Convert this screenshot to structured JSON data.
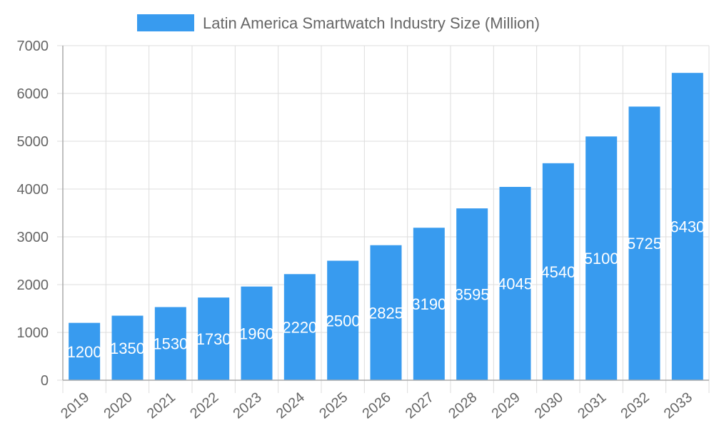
{
  "chart_data": {
    "type": "bar",
    "title": "",
    "legend": [
      "Latin America Smartwatch Industry Size (Million)"
    ],
    "legend_position": "top-center",
    "categories": [
      "2019",
      "2020",
      "2021",
      "2022",
      "2023",
      "2024",
      "2025",
      "2026",
      "2027",
      "2028",
      "2029",
      "2030",
      "2031",
      "2032",
      "2033"
    ],
    "series": [
      {
        "name": "Latin America Smartwatch Industry Size (Million)",
        "values": [
          1200,
          1350,
          1530,
          1730,
          1960,
          2220,
          2500,
          2825,
          3190,
          3595,
          4045,
          4540,
          5100,
          5725,
          6430
        ]
      }
    ],
    "ylim": [
      0,
      7000
    ],
    "yticks": [
      0,
      1000,
      2000,
      3000,
      4000,
      5000,
      6000,
      7000
    ],
    "xlabel": "",
    "ylabel": "",
    "grid": true,
    "bar_color": "#389BEF",
    "data_labels": true
  }
}
